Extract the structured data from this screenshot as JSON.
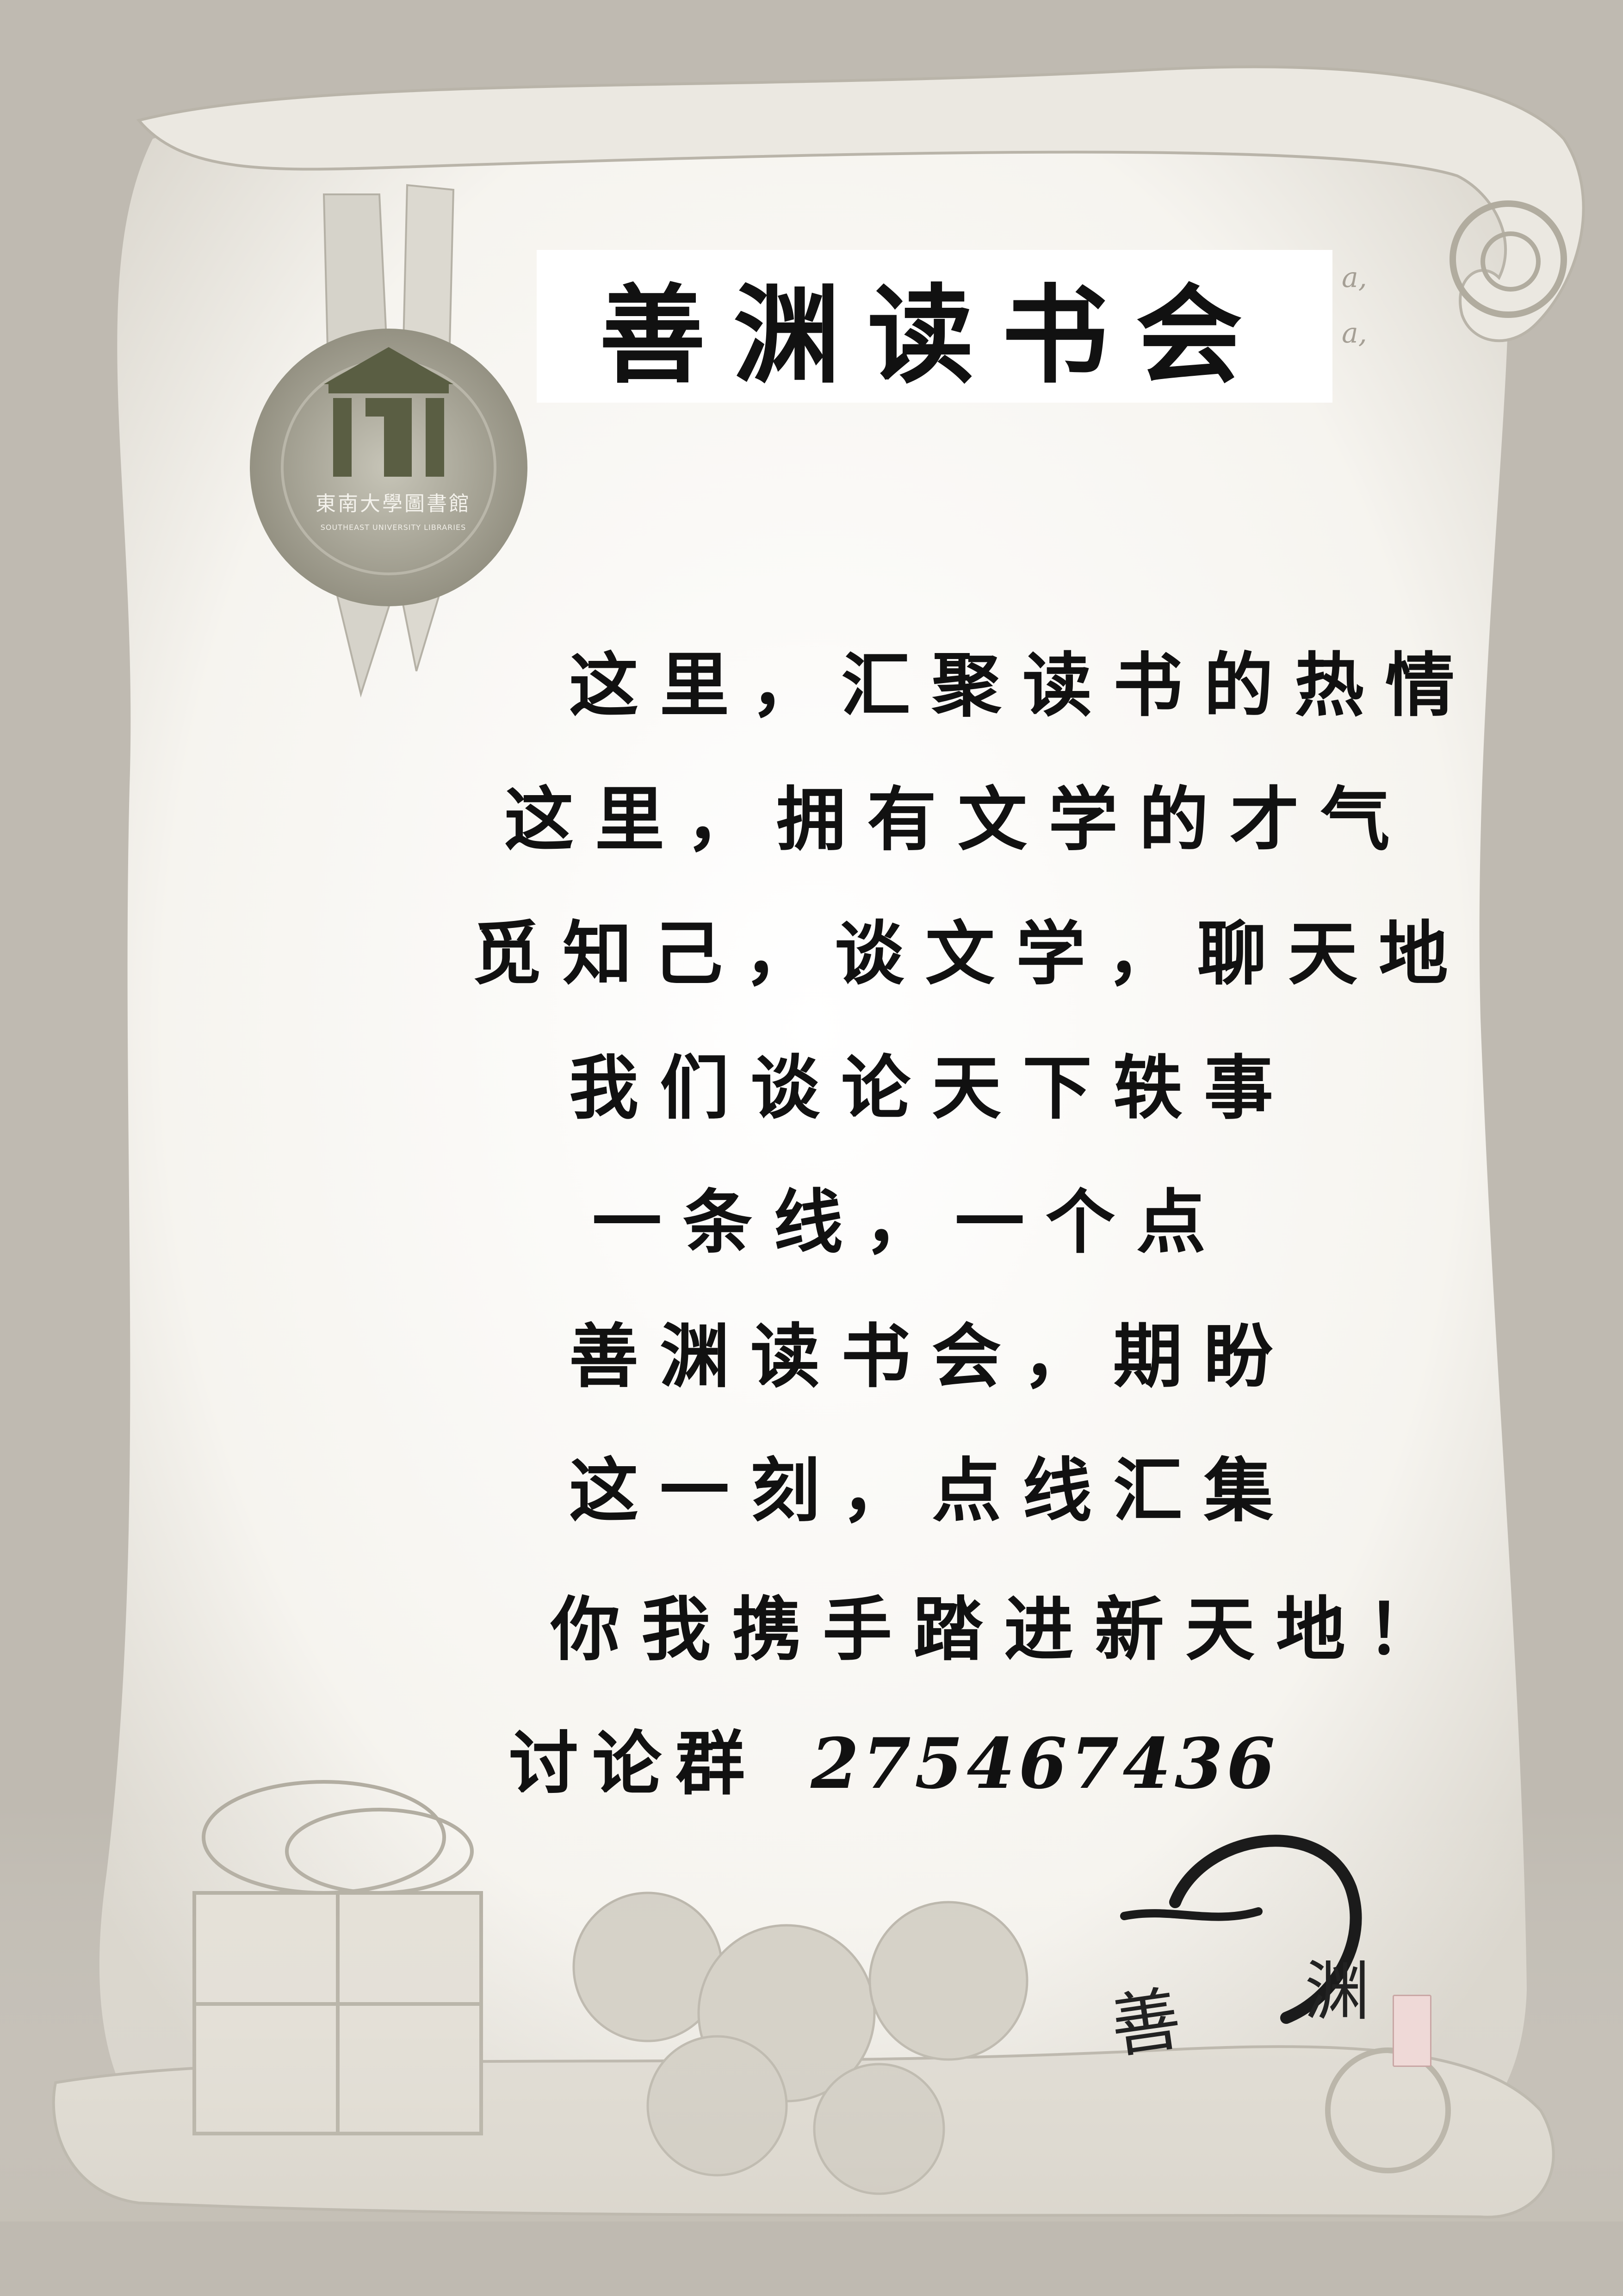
{
  "title": "善渊读书会",
  "library": {
    "name_cn": "東南大學圖書館",
    "name_en": "SOUTHEAST UNIVERSITY LIBRARIES"
  },
  "poem_lines": [
    "这里，汇聚读书的热情",
    "这里，拥有文学的才气",
    "觅知己，谈文学，聊天地",
    "我们谈论天下轶事",
    "一条线，一个点",
    "善渊读书会，期盼",
    "这一刻，点线汇集",
    "你我携手踏进新天地！"
  ],
  "discussion_group": {
    "label": "讨论群",
    "number": "275467436"
  },
  "signature": {
    "char1": "善",
    "char2": "渊"
  },
  "colors": {
    "background": "#bfbab1",
    "parchment": "#f7f5f0",
    "seal": "#a9a697",
    "logo": "#5a5e43",
    "ink": "#111111"
  }
}
